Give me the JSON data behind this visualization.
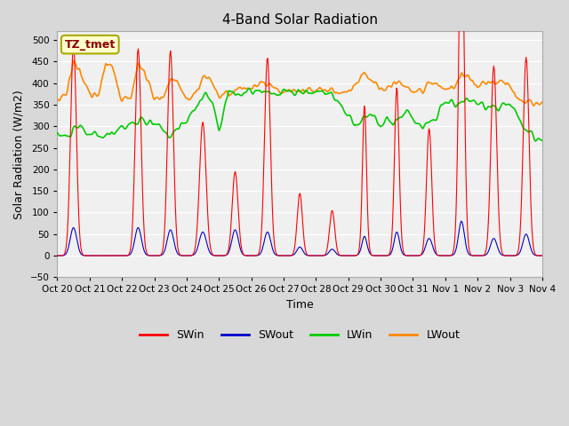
{
  "title": "4-Band Solar Radiation",
  "xlabel": "Time",
  "ylabel": "Solar Radiation (W/m2)",
  "ylim": [
    -50,
    520
  ],
  "background_color": "#d8d8d8",
  "plot_bg_color": "#f0f0f0",
  "annotation_text": "TZ_tmet",
  "annotation_color": "#8B0000",
  "annotation_bg": "#ffffcc",
  "annotation_border": "#aaaa00",
  "line_colors": {
    "SWin": "#ff0000",
    "SWout": "#0000cc",
    "LWin": "#00cc00",
    "LWout": "#ff8800"
  },
  "line_widths": {
    "SWin": 0.8,
    "SWout": 0.8,
    "LWin": 1.2,
    "LWout": 1.2
  },
  "n_days": 15,
  "xtick_labels": [
    "Oct 20",
    "Oct 21",
    "Oct 22",
    "Oct 23",
    "Oct 24",
    "Oct 25",
    "Oct 26",
    "Oct 27",
    "Oct 28",
    "Oct 29",
    "Oct 30",
    "Oct 31",
    "Nov 1",
    "Nov 2",
    "Nov 3",
    "Nov 4"
  ],
  "grid_color": "#ffffff",
  "grid_alpha": 1.0,
  "figsize": [
    6.4,
    4.8
  ],
  "dpi": 100
}
